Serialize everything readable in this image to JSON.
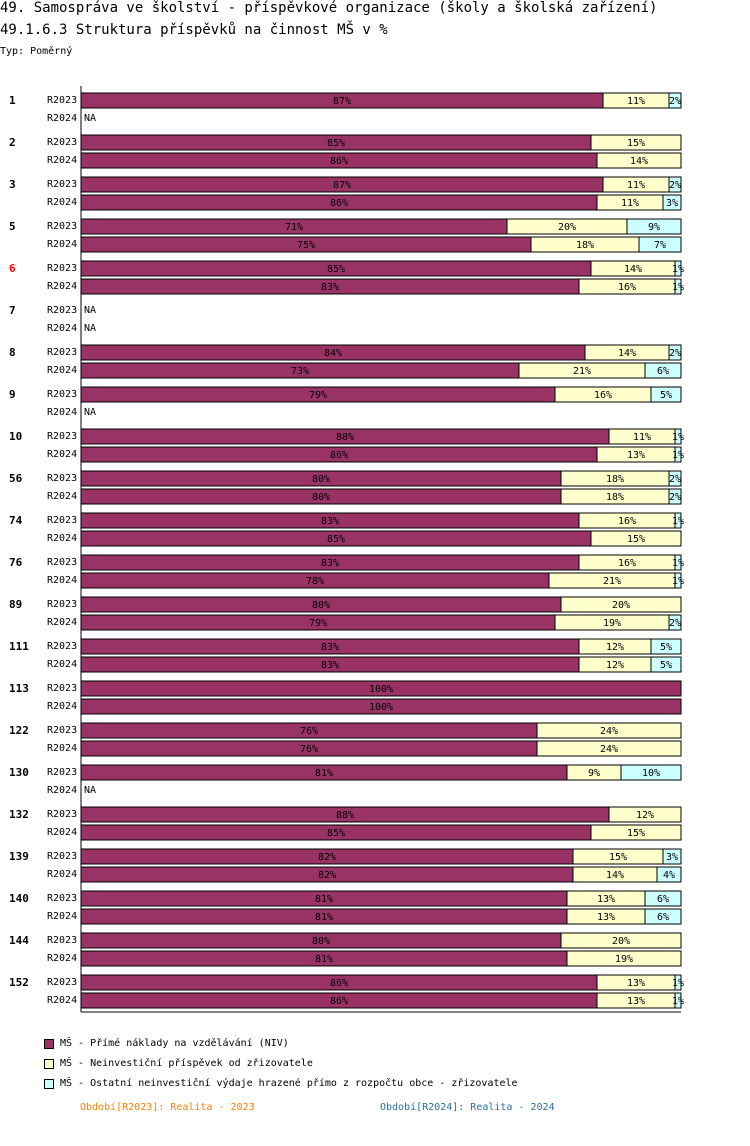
{
  "header": {
    "title": "49. Samospráva ve školství - příspěvkové organizace (školy a školská zařízení)",
    "subtitle": "49.1.6.3 Struktura příspěvků na činnost MŠ v %",
    "type_label": "Typ: Poměrný"
  },
  "legend": [
    {
      "label": "MŠ - Přímé náklady na vzdělávání (NIV)",
      "color": "#993366"
    },
    {
      "label": "MŠ - Neinvestiční příspěvek od zřizovatele",
      "color": "#ffffcc"
    },
    {
      "label": "MŠ - Ostatní neinvestiční výdaje hrazené přímo z rozpočtu obce - zřizovatele",
      "color": "#ccffff"
    }
  ],
  "periods": {
    "p2023": "Období[R2023]: Realita - 2023",
    "p2024": "Období[R2024]: Realita - 2024"
  },
  "chart_data": {
    "type": "bar",
    "orientation": "horizontal",
    "stacked": true,
    "unit": "%",
    "xlim": [
      0,
      100
    ],
    "series_names": [
      "MŠ - Přímé náklady na vzdělávání (NIV)",
      "MŠ - Neinvestiční příspěvek od zřizovatele",
      "MŠ - Ostatní neinvestiční výdaje hrazené přímo z rozpočtu obce - zřizovatele"
    ],
    "colors": [
      "#993366",
      "#ffffcc",
      "#ccffff"
    ],
    "highlight_color": "#ff0000",
    "na_label": "NA",
    "groups": [
      {
        "id": "1",
        "rows": [
          {
            "period": "R2023",
            "values": [
              87,
              11,
              2
            ]
          },
          {
            "period": "R2024",
            "values": null
          }
        ]
      },
      {
        "id": "2",
        "rows": [
          {
            "period": "R2023",
            "values": [
              85,
              15,
              0
            ]
          },
          {
            "period": "R2024",
            "values": [
              86,
              14,
              0
            ]
          }
        ]
      },
      {
        "id": "3",
        "rows": [
          {
            "period": "R2023",
            "values": [
              87,
              11,
              2
            ]
          },
          {
            "period": "R2024",
            "values": [
              86,
              11,
              3
            ]
          }
        ]
      },
      {
        "id": "5",
        "rows": [
          {
            "period": "R2023",
            "values": [
              71,
              20,
              9
            ]
          },
          {
            "period": "R2024",
            "values": [
              75,
              18,
              7
            ]
          }
        ]
      },
      {
        "id": "6",
        "highlight": true,
        "rows": [
          {
            "period": "R2023",
            "values": [
              85,
              14,
              1
            ]
          },
          {
            "period": "R2024",
            "values": [
              83,
              16,
              1
            ]
          }
        ]
      },
      {
        "id": "7",
        "rows": [
          {
            "period": "R2023",
            "values": null
          },
          {
            "period": "R2024",
            "values": null
          }
        ]
      },
      {
        "id": "8",
        "rows": [
          {
            "period": "R2023",
            "values": [
              84,
              14,
              2
            ]
          },
          {
            "period": "R2024",
            "values": [
              73,
              21,
              6
            ]
          }
        ]
      },
      {
        "id": "9",
        "rows": [
          {
            "period": "R2023",
            "values": [
              79,
              16,
              5
            ]
          },
          {
            "period": "R2024",
            "values": null
          }
        ]
      },
      {
        "id": "10",
        "rows": [
          {
            "period": "R2023",
            "values": [
              88,
              11,
              1
            ]
          },
          {
            "period": "R2024",
            "values": [
              86,
              13,
              1
            ]
          }
        ]
      },
      {
        "id": "56",
        "rows": [
          {
            "period": "R2023",
            "values": [
              80,
              18,
              2
            ]
          },
          {
            "period": "R2024",
            "values": [
              80,
              18,
              2
            ]
          }
        ]
      },
      {
        "id": "74",
        "rows": [
          {
            "period": "R2023",
            "values": [
              83,
              16,
              1
            ]
          },
          {
            "period": "R2024",
            "values": [
              85,
              15,
              0
            ]
          }
        ]
      },
      {
        "id": "76",
        "rows": [
          {
            "period": "R2023",
            "values": [
              83,
              16,
              1
            ]
          },
          {
            "period": "R2024",
            "values": [
              78,
              21,
              1
            ]
          }
        ]
      },
      {
        "id": "89",
        "rows": [
          {
            "period": "R2023",
            "values": [
              80,
              20,
              0
            ]
          },
          {
            "period": "R2024",
            "values": [
              79,
              19,
              2
            ]
          }
        ]
      },
      {
        "id": "111",
        "rows": [
          {
            "period": "R2023",
            "values": [
              83,
              12,
              5
            ]
          },
          {
            "period": "R2024",
            "values": [
              83,
              12,
              5
            ]
          }
        ]
      },
      {
        "id": "113",
        "rows": [
          {
            "period": "R2023",
            "values": [
              100,
              0,
              0
            ]
          },
          {
            "period": "R2024",
            "values": [
              100,
              0,
              0
            ]
          }
        ]
      },
      {
        "id": "122",
        "rows": [
          {
            "period": "R2023",
            "values": [
              76,
              24,
              0
            ]
          },
          {
            "period": "R2024",
            "values": [
              76,
              24,
              0
            ]
          }
        ]
      },
      {
        "id": "130",
        "rows": [
          {
            "period": "R2023",
            "values": [
              81,
              9,
              10
            ]
          },
          {
            "period": "R2024",
            "values": null
          }
        ]
      },
      {
        "id": "132",
        "rows": [
          {
            "period": "R2023",
            "values": [
              88,
              12,
              0
            ]
          },
          {
            "period": "R2024",
            "values": [
              85,
              15,
              0
            ]
          }
        ]
      },
      {
        "id": "139",
        "rows": [
          {
            "period": "R2023",
            "values": [
              82,
              15,
              3
            ]
          },
          {
            "period": "R2024",
            "values": [
              82,
              14,
              4
            ]
          }
        ]
      },
      {
        "id": "140",
        "rows": [
          {
            "period": "R2023",
            "values": [
              81,
              13,
              6
            ]
          },
          {
            "period": "R2024",
            "values": [
              81,
              13,
              6
            ]
          }
        ]
      },
      {
        "id": "144",
        "rows": [
          {
            "period": "R2023",
            "values": [
              80,
              20,
              0
            ]
          },
          {
            "period": "R2024",
            "values": [
              81,
              19,
              0
            ]
          }
        ]
      },
      {
        "id": "152",
        "rows": [
          {
            "period": "R2023",
            "values": [
              86,
              13,
              1
            ]
          },
          {
            "period": "R2024",
            "values": [
              86,
              13,
              1
            ]
          }
        ]
      }
    ]
  }
}
